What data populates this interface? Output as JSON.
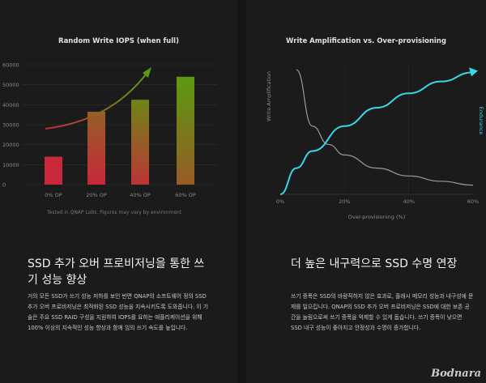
{
  "left": {
    "heading": "SSD 추가 오버 프로비저닝을 통한 쓰기 성능 향상",
    "body": "거의 모든 SSD가 쓰기 성능 저하를 보인 반면 QNAP의 소프트웨어 정의 SSD 추가 오버 프로비저닝은 최적화된 SSD 성능을 지속시키도록 도와줍니다. 이 기술은 주요 SSD RAID 구성을 지원하여 IOPS를 요하는 애플리케이션을 위해 100% 이상의 지속적인 성능 향상과 함께 임의 쓰기 속도를 높입니다.",
    "note": "Tested in QNAP Labs. Figures may vary by environment"
  },
  "right": {
    "heading": "더 높은 내구력으로 SSD 수명 연장",
    "body": "쓰기 증폭은 SSD의 바람직하지 않은 효과로, 플래시 메모리 성능과 내구성에 문제를 일으킵니다. QNAP의 SSD 추가 오버 프로비저닝은 SSD에 대한 보존 공간을 늘림으로써 쓰기 증폭을 억제할 수 있게 돕습니다. 쓰기 증폭이 낮으면 SSD 내구 성능이 좋아지고 안정성과 수명이 증가합니다."
  },
  "watermark": "Bodnara",
  "colors": {
    "bar_red": "#c8283a",
    "bar_green": "#5a9a10",
    "curve_cyan": "#38d8e8",
    "curve_gray": "#9a9a9a"
  },
  "chart_data": [
    {
      "type": "bar",
      "title": "Random Write IOPS (when full)",
      "categories": [
        "0% OP",
        "20% OP",
        "40% OP",
        "60% OP"
      ],
      "values": [
        14000,
        36500,
        42500,
        54000
      ],
      "yticks": [
        0,
        10000,
        20000,
        30000,
        40000,
        50000,
        60000
      ],
      "ylim": [
        0,
        60000
      ],
      "grid": true
    },
    {
      "type": "line",
      "title": "Write Amplification vs. Over-provisioning",
      "xlabel": "Over-provisioning (%)",
      "ylabel_left": "Write Amplification",
      "ylabel_right": "Endurance",
      "xticks": [
        "0%",
        "20%",
        "40%",
        "60%"
      ],
      "xlim": [
        0,
        60
      ],
      "series": [
        {
          "name": "Write Amplification",
          "x": [
            5,
            10,
            15,
            20,
            30,
            40,
            50,
            60
          ],
          "y": [
            0.95,
            0.52,
            0.38,
            0.3,
            0.2,
            0.14,
            0.1,
            0.07
          ]
        },
        {
          "name": "Endurance",
          "x": [
            0,
            5,
            10,
            20,
            30,
            40,
            50,
            60
          ],
          "y": [
            0.0,
            0.2,
            0.33,
            0.52,
            0.66,
            0.77,
            0.86,
            0.93
          ]
        }
      ]
    }
  ]
}
